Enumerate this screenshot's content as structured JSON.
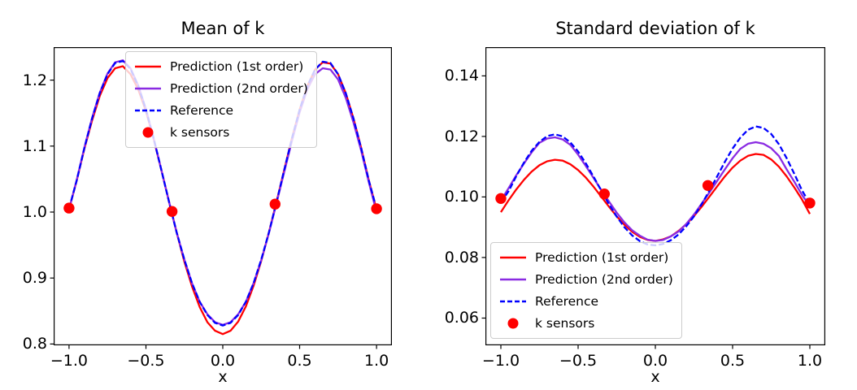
{
  "figure": {
    "background": "#ffffff"
  },
  "colors": {
    "prediction_1st": "#ff0000",
    "prediction_2nd": "#8a2be2",
    "reference": "#0000ff",
    "sensors": "#ff0000",
    "spine": "#000000",
    "legend_border": "#cccccc"
  },
  "chart_data": [
    {
      "type": "line",
      "title": "Mean of k",
      "xlabel": "x",
      "xlim": [
        -1.1,
        1.1
      ],
      "ylim": [
        0.798,
        1.25
      ],
      "grid": false,
      "legend_loc": "upper-left",
      "xticks": {
        "values": [
          -1.0,
          -0.5,
          0.0,
          0.5,
          1.0
        ],
        "labels": [
          "−1.0",
          "−0.5",
          "0.0",
          "0.5",
          "1.0"
        ]
      },
      "yticks": {
        "values": [
          0.8,
          0.9,
          1.0,
          1.1,
          1.2
        ],
        "labels": [
          "0.8",
          "0.9",
          "1.0",
          "1.1",
          "1.2"
        ]
      },
      "x": [
        -1.0,
        -0.95,
        -0.9,
        -0.85,
        -0.8,
        -0.75,
        -0.7,
        -0.65,
        -0.6,
        -0.55,
        -0.5,
        -0.45,
        -0.4,
        -0.35,
        -0.3,
        -0.25,
        -0.2,
        -0.15,
        -0.1,
        -0.05,
        0.0,
        0.05,
        0.1,
        0.15,
        0.2,
        0.25,
        0.3,
        0.35,
        0.4,
        0.45,
        0.5,
        0.55,
        0.6,
        0.65,
        0.7,
        0.75,
        0.8,
        0.85,
        0.9,
        0.95,
        1.0
      ],
      "series": [
        {
          "name": "Prediction (1st order)",
          "color": "#ff0000",
          "linestyle": "solid",
          "values": [
            1.004,
            1.048,
            1.096,
            1.139,
            1.176,
            1.203,
            1.218,
            1.221,
            1.209,
            1.186,
            1.153,
            1.111,
            1.064,
            1.016,
            0.969,
            0.925,
            0.887,
            0.856,
            0.833,
            0.82,
            0.815,
            0.82,
            0.834,
            0.857,
            0.888,
            0.926,
            0.969,
            1.016,
            1.064,
            1.112,
            1.155,
            1.191,
            1.216,
            1.227,
            1.225,
            1.209,
            1.18,
            1.142,
            1.097,
            1.048,
            1.004
          ]
        },
        {
          "name": "Prediction (2nd order)",
          "color": "#8a2be2",
          "linestyle": "solid",
          "values": [
            1.004,
            1.049,
            1.098,
            1.143,
            1.181,
            1.21,
            1.227,
            1.23,
            1.218,
            1.192,
            1.156,
            1.112,
            1.064,
            1.016,
            0.969,
            0.928,
            0.892,
            0.864,
            0.845,
            0.833,
            0.829,
            0.833,
            0.845,
            0.864,
            0.892,
            0.927,
            0.968,
            1.014,
            1.061,
            1.108,
            1.151,
            1.186,
            1.209,
            1.218,
            1.216,
            1.201,
            1.173,
            1.136,
            1.093,
            1.045,
            1.0
          ]
        },
        {
          "name": "Reference",
          "color": "#0000ff",
          "linestyle": "dashed",
          "values": [
            1.005,
            1.048,
            1.097,
            1.142,
            1.18,
            1.209,
            1.226,
            1.229,
            1.217,
            1.191,
            1.155,
            1.112,
            1.064,
            1.016,
            0.969,
            0.928,
            0.892,
            0.864,
            0.844,
            0.832,
            0.828,
            0.832,
            0.844,
            0.864,
            0.892,
            0.928,
            0.969,
            1.016,
            1.064,
            1.112,
            1.155,
            1.191,
            1.216,
            1.228,
            1.226,
            1.209,
            1.18,
            1.142,
            1.097,
            1.048,
            1.005
          ]
        }
      ],
      "sensors": {
        "name": "k sensors",
        "color": "#ff0000",
        "points": [
          [
            -1.0,
            1.006
          ],
          [
            -0.33,
            1.001
          ],
          [
            0.34,
            1.012
          ],
          [
            1.0,
            1.005
          ]
        ]
      }
    },
    {
      "type": "line",
      "title": "Standard deviation of k",
      "xlabel": "x",
      "xlim": [
        -1.1,
        1.1
      ],
      "ylim": [
        0.051,
        0.1495
      ],
      "grid": false,
      "legend_loc": "lower-left",
      "xticks": {
        "values": [
          -1.0,
          -0.5,
          0.0,
          0.5,
          1.0
        ],
        "labels": [
          "−1.0",
          "−0.5",
          "0.0",
          "0.5",
          "1.0"
        ]
      },
      "yticks": {
        "values": [
          0.06,
          0.08,
          0.1,
          0.12,
          0.14
        ],
        "labels": [
          "0.06",
          "0.08",
          "0.10",
          "0.12",
          "0.14"
        ]
      },
      "x": [
        -1.0,
        -0.95,
        -0.9,
        -0.85,
        -0.8,
        -0.75,
        -0.7,
        -0.65,
        -0.6,
        -0.55,
        -0.5,
        -0.45,
        -0.4,
        -0.35,
        -0.3,
        -0.25,
        -0.2,
        -0.15,
        -0.1,
        -0.05,
        0.0,
        0.05,
        0.1,
        0.15,
        0.2,
        0.25,
        0.3,
        0.35,
        0.4,
        0.45,
        0.5,
        0.55,
        0.6,
        0.65,
        0.7,
        0.75,
        0.8,
        0.85,
        0.9,
        0.95,
        1.0
      ],
      "series": [
        {
          "name": "Prediction (1st order)",
          "color": "#ff0000",
          "linestyle": "solid",
          "values": [
            0.095,
            0.0989,
            0.1025,
            0.1057,
            0.1084,
            0.1105,
            0.1118,
            0.1123,
            0.112,
            0.1108,
            0.1089,
            0.1064,
            0.1034,
            0.1001,
            0.0968,
            0.0936,
            0.0908,
            0.0885,
            0.0868,
            0.0858,
            0.0855,
            0.086,
            0.087,
            0.0888,
            0.091,
            0.0937,
            0.0968,
            0.1001,
            0.1035,
            0.1068,
            0.1097,
            0.112,
            0.1136,
            0.1142,
            0.1139,
            0.1124,
            0.11,
            0.1068,
            0.1031,
            0.0991,
            0.0944
          ]
        },
        {
          "name": "Prediction (2nd order)",
          "color": "#8a2be2",
          "linestyle": "solid",
          "values": [
            0.0988,
            0.1029,
            0.1072,
            0.1111,
            0.1148,
            0.1179,
            0.1193,
            0.1197,
            0.119,
            0.1172,
            0.114,
            0.1102,
            0.1063,
            0.1023,
            0.0985,
            0.0948,
            0.0916,
            0.089,
            0.0872,
            0.0859,
            0.0855,
            0.0858,
            0.087,
            0.0886,
            0.0911,
            0.0942,
            0.0978,
            0.1015,
            0.1053,
            0.1091,
            0.1128,
            0.1159,
            0.1176,
            0.1181,
            0.1176,
            0.1161,
            0.1135,
            0.1091,
            0.105,
            0.1006,
            0.097
          ]
        },
        {
          "name": "Reference",
          "color": "#0000ff",
          "linestyle": "dashed",
          "values": [
            0.0982,
            0.1019,
            0.1069,
            0.1114,
            0.1153,
            0.1182,
            0.1201,
            0.1207,
            0.12,
            0.118,
            0.115,
            0.1111,
            0.1067,
            0.1021,
            0.0976,
            0.0935,
            0.09,
            0.0873,
            0.0854,
            0.0843,
            0.084,
            0.0845,
            0.0857,
            0.0876,
            0.0903,
            0.0936,
            0.0976,
            0.1021,
            0.1068,
            0.1116,
            0.116,
            0.1196,
            0.1222,
            0.1233,
            0.1228,
            0.1208,
            0.1174,
            0.1128,
            0.1076,
            0.1021,
            0.0978
          ]
        }
      ],
      "sensors": {
        "name": "k sensors",
        "color": "#ff0000",
        "points": [
          [
            -1.0,
            0.0995
          ],
          [
            -0.33,
            0.101
          ],
          [
            0.34,
            0.1038
          ],
          [
            1.0,
            0.098
          ]
        ]
      }
    }
  ]
}
